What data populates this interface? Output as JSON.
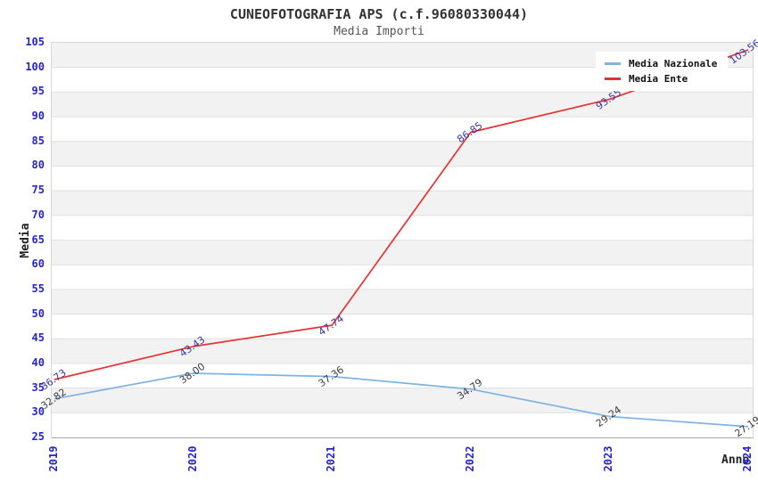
{
  "header": {
    "title": "CUNEOFOTOGRAFIA APS (c.f.96080330044)",
    "subtitle": "Media Importi"
  },
  "axes": {
    "y_title": "Media",
    "x_title": "Anno",
    "y_ticks": [
      "25",
      "30",
      "35",
      "40",
      "45",
      "50",
      "55",
      "60",
      "65",
      "70",
      "75",
      "80",
      "85",
      "90",
      "95",
      "100",
      "105"
    ],
    "x_ticks": [
      "2019",
      "2020",
      "2021",
      "2022",
      "2023",
      "2024"
    ]
  },
  "chart_data": {
    "type": "line",
    "title": "CUNEOFOTOGRAFIA APS (c.f.96080330044)",
    "subtitle": "Media Importi",
    "xlabel": "Anno",
    "ylabel": "Media",
    "categories": [
      "2019",
      "2020",
      "2021",
      "2022",
      "2023",
      "2024"
    ],
    "series": [
      {
        "name": "Media Nazionale",
        "color": "#7fb3e3",
        "label_color": "#3c3c3c",
        "values": [
          32.82,
          38.0,
          37.36,
          34.79,
          29.24,
          27.19
        ],
        "point_labels": [
          "32.82",
          "38.00",
          "37.36",
          "34.79",
          "29.24",
          "27.19"
        ]
      },
      {
        "name": "Media Ente",
        "color": "#e73131",
        "label_color": "#3535a8",
        "values": [
          36.73,
          43.43,
          47.74,
          86.85,
          93.55,
          103.56
        ],
        "point_labels": [
          "36.73",
          "43.43",
          "47.74",
          "86.85",
          "93.55",
          "103.56"
        ]
      }
    ],
    "ylim": [
      25,
      105
    ],
    "ytick_step": 5,
    "grid": "horizontal-bands",
    "band_color": "#f2f2f2",
    "gridline_color": "#e0e0e0",
    "tick_color": "#2424cc",
    "legend_position": "top-right"
  }
}
